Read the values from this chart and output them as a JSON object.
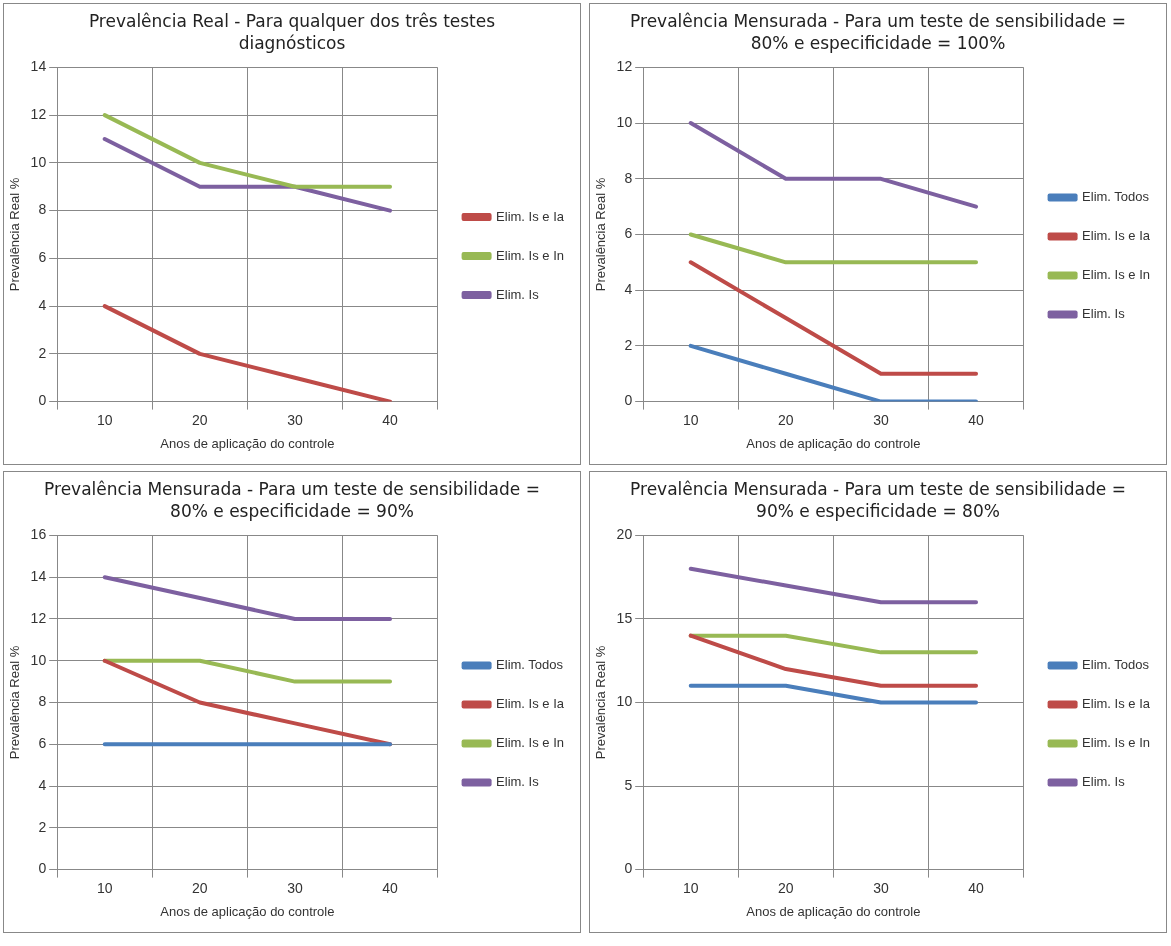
{
  "chart_data": [
    {
      "type": "line",
      "title": "Prevalência Real - Para qualquer dos três testes diagnósticos",
      "xlabel": "Anos de aplicação do controle",
      "ylabel": "Prevalência Real %",
      "categories": [
        "10",
        "20",
        "30",
        "40"
      ],
      "ylim": [
        0,
        14
      ],
      "yticks": [
        0,
        2,
        4,
        6,
        8,
        10,
        12,
        14
      ],
      "grid": true,
      "legend": "right",
      "series": [
        {
          "name": "Elim. Is e Ia",
          "color": "#be4b48",
          "values": [
            4,
            2,
            1,
            0
          ]
        },
        {
          "name": "Elim. Is e In",
          "color": "#98b954",
          "values": [
            12,
            10,
            9,
            9
          ]
        },
        {
          "name": "Elim. Is",
          "color": "#7d60a0",
          "values": [
            11,
            9,
            9,
            8
          ]
        }
      ]
    },
    {
      "type": "line",
      "title": "Prevalência Mensurada - Para um teste de sensibilidade = 80% e especificidade = 100%",
      "xlabel": "Anos de aplicação do controle",
      "ylabel": "Prevalência Real %",
      "categories": [
        "10",
        "20",
        "30",
        "40"
      ],
      "ylim": [
        0,
        12
      ],
      "yticks": [
        0,
        2,
        4,
        6,
        8,
        10,
        12
      ],
      "grid": true,
      "legend": "right",
      "series": [
        {
          "name": "Elim. Todos",
          "color": "#4a7ebb",
          "values": [
            2,
            1,
            0,
            0
          ]
        },
        {
          "name": "Elim. Is e Ia",
          "color": "#be4b48",
          "values": [
            5,
            3,
            1,
            1
          ]
        },
        {
          "name": "Elim. Is e In",
          "color": "#98b954",
          "values": [
            6,
            5,
            5,
            5
          ]
        },
        {
          "name": "Elim. Is",
          "color": "#7d60a0",
          "values": [
            10,
            8,
            8,
            7
          ]
        }
      ]
    },
    {
      "type": "line",
      "title": "Prevalência Mensurada - Para um teste de sensibilidade = 80% e especificidade = 90%",
      "xlabel": "Anos de aplicação do controle",
      "ylabel": "Prevalência Real %",
      "categories": [
        "10",
        "20",
        "30",
        "40"
      ],
      "ylim": [
        0,
        16
      ],
      "yticks": [
        0,
        2,
        4,
        6,
        8,
        10,
        12,
        14,
        16
      ],
      "grid": true,
      "legend": "right",
      "series": [
        {
          "name": "Elim. Todos",
          "color": "#4a7ebb",
          "values": [
            6,
            6,
            6,
            6
          ]
        },
        {
          "name": "Elim. Is e Ia",
          "color": "#be4b48",
          "values": [
            10,
            8,
            7,
            6
          ]
        },
        {
          "name": "Elim. Is e In",
          "color": "#98b954",
          "values": [
            10,
            10,
            9,
            9
          ]
        },
        {
          "name": "Elim. Is",
          "color": "#7d60a0",
          "values": [
            14,
            13,
            12,
            12
          ]
        }
      ]
    },
    {
      "type": "line",
      "title": "Prevalência Mensurada - Para um teste de sensibilidade = 90% e especificidade = 80%",
      "xlabel": "Anos de aplicação do controle",
      "ylabel": "Prevalência Real %",
      "categories": [
        "10",
        "20",
        "30",
        "40"
      ],
      "ylim": [
        0,
        20
      ],
      "yticks": [
        0,
        5,
        10,
        15,
        20
      ],
      "grid": true,
      "legend": "right",
      "series": [
        {
          "name": "Elim. Todos",
          "color": "#4a7ebb",
          "values": [
            11,
            11,
            10,
            10
          ]
        },
        {
          "name": "Elim. Is e Ia",
          "color": "#be4b48",
          "values": [
            14,
            12,
            11,
            11
          ]
        },
        {
          "name": "Elim. Is e In",
          "color": "#98b954",
          "values": [
            14,
            14,
            13,
            13
          ]
        },
        {
          "name": "Elim. Is",
          "color": "#7d60a0",
          "values": [
            18,
            17,
            16,
            16
          ]
        }
      ]
    }
  ]
}
